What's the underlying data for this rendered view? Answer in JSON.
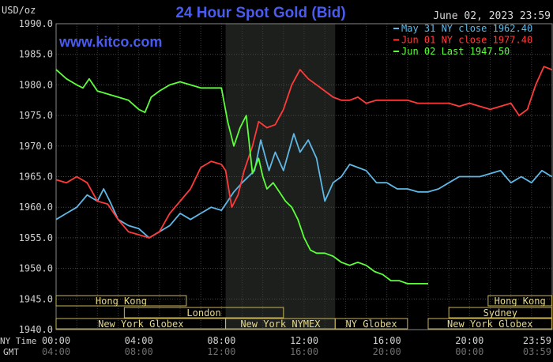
{
  "header": {
    "units": "USD/oz",
    "title": "24 Hour Spot Gold (Bid)",
    "timestamp": "June 02, 2023 23:59",
    "website": "www.kitco.com"
  },
  "legend": [
    {
      "label": "May 31 NY close 1962.40",
      "color": "#5fb8e6"
    },
    {
      "label": "Jun 01 NY close 1977.40",
      "color": "#ff3a3a"
    },
    {
      "label": "Jun 02 Last 1947.50",
      "color": "#5cff3a"
    }
  ],
  "axis": {
    "ny_time_label": "NY Time",
    "gmt_label": "GMT",
    "ny_ticks": [
      "00:00",
      "04:00",
      "08:00",
      "12:00",
      "16:00",
      "20:00",
      "23:59"
    ],
    "gmt_ticks": [
      "04:00",
      "08:00",
      "12:00",
      "16:00",
      "20:00",
      "00:00",
      "03:59"
    ],
    "y_ticks": [
      "1990.0",
      "1985.0",
      "1980.0",
      "1975.0",
      "1970.0",
      "1965.0",
      "1960.0",
      "1955.0",
      "1950.0",
      "1945.0",
      "1940.0"
    ]
  },
  "sessions": [
    {
      "label": "Hong Kong",
      "start": 0,
      "end": 6.3,
      "row": 0
    },
    {
      "label": "London",
      "start": 3.3,
      "end": 11.0,
      "row": 1
    },
    {
      "label": "New York Globex",
      "start": 0,
      "end": 8.2,
      "row": 2
    },
    {
      "label": "New York NYMEX",
      "start": 8.2,
      "end": 13.5,
      "row": 2
    },
    {
      "label": "NY Globex",
      "start": 13.5,
      "end": 17.0,
      "row": 2
    },
    {
      "label": "Hong Kong",
      "start": 20.9,
      "end": 23.98,
      "row": 0
    },
    {
      "label": "Sydney",
      "start": 19.0,
      "end": 23.98,
      "row": 1
    },
    {
      "label": "New York Globex",
      "start": 18.0,
      "end": 23.98,
      "row": 2
    }
  ],
  "chart_data": {
    "type": "line",
    "title": "24 Hour Spot Gold (Bid)",
    "ylabel": "USD/oz",
    "xlabel": "NY Time",
    "xlim": [
      0,
      24
    ],
    "ylim": [
      1940,
      1990
    ],
    "grid": true,
    "shaded_region": [
      8.2,
      13.5
    ],
    "legend_position": "top-right",
    "series": [
      {
        "name": "May 31 NY close 1962.40",
        "color": "#5fb8e6",
        "x": [
          0,
          0.5,
          1,
          1.5,
          2,
          2.3,
          2.6,
          3,
          3.5,
          4,
          4.5,
          5,
          5.5,
          6,
          6.5,
          7,
          7.5,
          8,
          8.3,
          8.6,
          9,
          9.3,
          9.6,
          9.9,
          10.3,
          10.6,
          11,
          11.5,
          11.8,
          12.2,
          12.6,
          13,
          13.4,
          13.8,
          14.2,
          14.6,
          15,
          15.5,
          16,
          16.5,
          17,
          17.5,
          18,
          18.5,
          19,
          19.5,
          20,
          20.5,
          21,
          21.5,
          22,
          22.5,
          23,
          23.5,
          23.98
        ],
        "y": [
          1958,
          1959,
          1960,
          1962,
          1961,
          1963,
          1961,
          1958,
          1957,
          1956.5,
          1955,
          1956,
          1957,
          1959,
          1958,
          1959,
          1960,
          1959.5,
          1961,
          1962.5,
          1964,
          1965,
          1966,
          1971,
          1966,
          1969,
          1966,
          1972,
          1969,
          1971,
          1968,
          1961,
          1964,
          1965,
          1967,
          1966.5,
          1966,
          1964,
          1964,
          1963,
          1963,
          1962.5,
          1962.5,
          1963,
          1964,
          1965,
          1965,
          1965,
          1965.5,
          1966,
          1964,
          1965,
          1964,
          1966,
          1965
        ]
      },
      {
        "name": "Jun 01 NY close 1977.40",
        "color": "#ff3a3a",
        "x": [
          0,
          0.5,
          1,
          1.5,
          2,
          2.5,
          3,
          3.5,
          4,
          4.5,
          5,
          5.5,
          6,
          6.5,
          7,
          7.5,
          8,
          8.2,
          8.5,
          8.8,
          9.1,
          9.5,
          9.8,
          10.2,
          10.6,
          11,
          11.4,
          11.8,
          12.2,
          12.6,
          13,
          13.4,
          13.8,
          14.2,
          14.6,
          15,
          15.5,
          16,
          16.5,
          17,
          17.5,
          18,
          18.5,
          19,
          19.5,
          20,
          20.5,
          21,
          21.5,
          22,
          22.4,
          22.8,
          23.2,
          23.6,
          23.98
        ],
        "y": [
          1964.5,
          1964,
          1965,
          1964,
          1961,
          1960.5,
          1958,
          1956,
          1955.5,
          1955,
          1956,
          1959,
          1961,
          1963,
          1966.5,
          1967.5,
          1967,
          1966,
          1960,
          1962,
          1966,
          1970,
          1974,
          1973,
          1973.5,
          1976,
          1980,
          1982.5,
          1981,
          1980,
          1979,
          1978,
          1977.5,
          1977.5,
          1978,
          1977,
          1977.5,
          1977.5,
          1977.5,
          1977.5,
          1977,
          1977,
          1977,
          1977,
          1976.5,
          1977,
          1976.5,
          1976,
          1976.5,
          1977,
          1975,
          1976,
          1980,
          1983,
          1982.5
        ]
      },
      {
        "name": "Jun 02 Last 1947.50",
        "color": "#5cff3a",
        "x": [
          0,
          0.5,
          1,
          1.3,
          1.6,
          2,
          2.5,
          3,
          3.5,
          4,
          4.3,
          4.6,
          5,
          5.5,
          6,
          6.5,
          7,
          7.5,
          8,
          8.3,
          8.6,
          8.9,
          9.2,
          9.5,
          9.8,
          10,
          10.2,
          10.5,
          10.8,
          11.1,
          11.4,
          11.7,
          12,
          12.3,
          12.6,
          13,
          13.4,
          13.8,
          14.2,
          14.6,
          15,
          15.4,
          15.8,
          16.2,
          16.6,
          17,
          17.5,
          18
        ],
        "y": [
          1982.5,
          1981,
          1980,
          1979.5,
          1981,
          1979,
          1978.5,
          1978,
          1977.5,
          1976,
          1975.5,
          1978,
          1979,
          1980,
          1980.5,
          1980,
          1979.5,
          1979.5,
          1979.5,
          1974,
          1970,
          1973,
          1975,
          1965.5,
          1968,
          1965,
          1963,
          1964,
          1962.5,
          1961,
          1960,
          1958,
          1955,
          1953,
          1952.5,
          1952.5,
          1952,
          1951,
          1950.5,
          1951,
          1950.5,
          1949.5,
          1949,
          1948,
          1948,
          1947.5,
          1947.5,
          1947.5
        ]
      }
    ]
  }
}
